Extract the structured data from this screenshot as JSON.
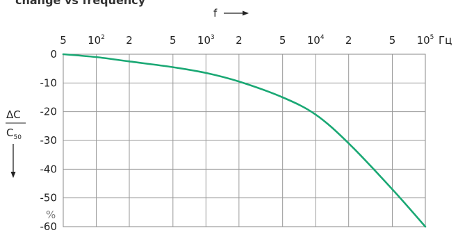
{
  "chart_data": {
    "type": "line",
    "title": "change vs frequency",
    "xlabel": "f",
    "x_unit": "Гц",
    "x_scale": "log",
    "xlim": [
      50,
      100000
    ],
    "x_tick_labels": [
      {
        "v": 50,
        "main": "5",
        "sup": ""
      },
      {
        "v": 100,
        "main": "10",
        "sup": "2"
      },
      {
        "v": 200,
        "main": "2",
        "sup": ""
      },
      {
        "v": 500,
        "main": "5",
        "sup": ""
      },
      {
        "v": 1000,
        "main": "10",
        "sup": "3"
      },
      {
        "v": 2000,
        "main": "2",
        "sup": ""
      },
      {
        "v": 5000,
        "main": "5",
        "sup": ""
      },
      {
        "v": 10000,
        "main": "10",
        "sup": "4"
      },
      {
        "v": 20000,
        "main": "2",
        "sup": ""
      },
      {
        "v": 50000,
        "main": "5",
        "sup": ""
      },
      {
        "v": 100000,
        "main": "10",
        "sup": "5"
      }
    ],
    "ylabel_num": "ΔC",
    "ylabel_den": "C",
    "ylabel_den_sub": "50",
    "y_unit": "%",
    "ylim": [
      -60,
      0
    ],
    "y_ticks": [
      0,
      -10,
      -20,
      -30,
      -40,
      -50,
      -60
    ],
    "y_tick_labels": [
      "0",
      "-10",
      "-20",
      "-30",
      "-40",
      "-50",
      "-60"
    ],
    "grid": true,
    "series": [
      {
        "color": "#1aa874",
        "points": [
          [
            50,
            0
          ],
          [
            100,
            -1
          ],
          [
            200,
            -2.5
          ],
          [
            500,
            -4.5
          ],
          [
            1000,
            -6.5
          ],
          [
            2000,
            -9.5
          ],
          [
            5000,
            -15
          ],
          [
            10000,
            -21
          ],
          [
            20000,
            -31
          ],
          [
            50000,
            -47
          ],
          [
            100000,
            -60
          ]
        ]
      }
    ]
  }
}
